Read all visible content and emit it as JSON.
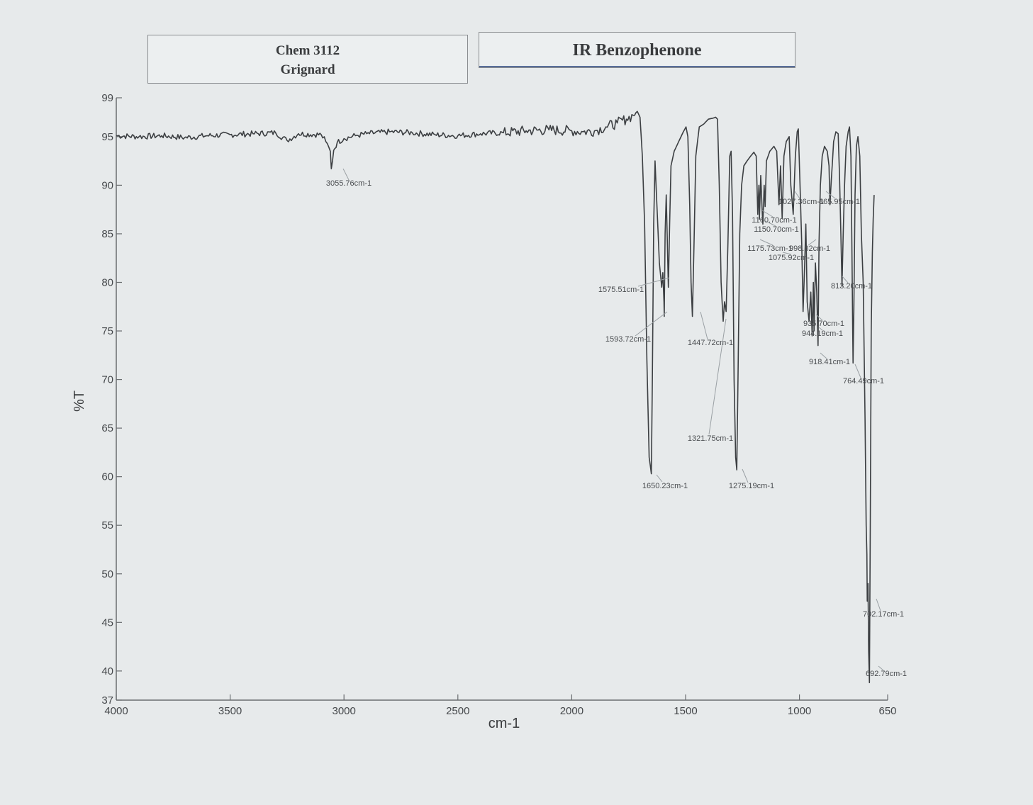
{
  "header": {
    "course": "Chem 3112",
    "experiment": "Grignard",
    "title": "IR Benzophenone"
  },
  "chart_data": {
    "type": "line",
    "title": "IR Benzophenone",
    "xlabel": "cm-1",
    "ylabel": "%T",
    "xlim": [
      4000,
      650
    ],
    "ylim": [
      37,
      99
    ],
    "x_ticks": [
      4000,
      3500,
      3000,
      2500,
      2000,
      1500,
      1000,
      650
    ],
    "y_ticks": [
      37,
      40,
      45,
      50,
      55,
      60,
      65,
      70,
      75,
      80,
      85,
      90,
      95,
      99
    ],
    "grid": false,
    "line_color": "#3c3f42",
    "series": [
      {
        "values": [
          [
            4000,
            95.1
          ],
          [
            3900,
            95.0
          ],
          [
            3800,
            95.1
          ],
          [
            3700,
            94.9
          ],
          [
            3600,
            95.1
          ],
          [
            3500,
            95.2
          ],
          [
            3400,
            95.3
          ],
          [
            3300,
            95.4
          ],
          [
            3250,
            94.6
          ],
          [
            3200,
            95.3
          ],
          [
            3100,
            95.2
          ],
          [
            3080,
            94.5
          ],
          [
            3060,
            93.5
          ],
          [
            3055.76,
            91.7
          ],
          [
            3045,
            93.6
          ],
          [
            3030,
            94.4
          ],
          [
            3000,
            94.8
          ],
          [
            2950,
            95.1
          ],
          [
            2900,
            95.3
          ],
          [
            2800,
            95.5
          ],
          [
            2700,
            95.4
          ],
          [
            2600,
            95.2
          ],
          [
            2500,
            95.1
          ],
          [
            2400,
            95.3
          ],
          [
            2300,
            95.4
          ],
          [
            2200,
            95.6
          ],
          [
            2100,
            95.7
          ],
          [
            2000,
            95.6
          ],
          [
            1950,
            95.5
          ],
          [
            1900,
            95.6
          ],
          [
            1850,
            96.0
          ],
          [
            1800,
            96.4
          ],
          [
            1760,
            96.8
          ],
          [
            1730,
            97.2
          ],
          [
            1712,
            97.6
          ],
          [
            1700,
            97.0
          ],
          [
            1690,
            93.0
          ],
          [
            1680,
            86.0
          ],
          [
            1670,
            72.0
          ],
          [
            1660,
            62.0
          ],
          [
            1650.23,
            60.3
          ],
          [
            1646,
            70.0
          ],
          [
            1640,
            86.0
          ],
          [
            1634,
            92.5
          ],
          [
            1628,
            89.0
          ],
          [
            1615,
            82.0
          ],
          [
            1605,
            79.5
          ],
          [
            1600,
            81.0
          ],
          [
            1595,
            78.0
          ],
          [
            1593.72,
            76.5
          ],
          [
            1590,
            85.0
          ],
          [
            1585,
            89.0
          ],
          [
            1580,
            84.0
          ],
          [
            1575.51,
            79.5
          ],
          [
            1570,
            86.0
          ],
          [
            1564,
            92.0
          ],
          [
            1550,
            93.5
          ],
          [
            1530,
            94.5
          ],
          [
            1510,
            95.5
          ],
          [
            1498,
            96.0
          ],
          [
            1490,
            95.0
          ],
          [
            1482,
            88.0
          ],
          [
            1476,
            80.0
          ],
          [
            1470,
            76.5
          ],
          [
            1463,
            84.0
          ],
          [
            1455,
            93.0
          ],
          [
            1447.72,
            94.5
          ],
          [
            1440,
            96.0
          ],
          [
            1420,
            96.3
          ],
          [
            1400,
            96.8
          ],
          [
            1380,
            96.9
          ],
          [
            1368,
            97.0
          ],
          [
            1360,
            96.8
          ],
          [
            1352,
            90.0
          ],
          [
            1344,
            80.0
          ],
          [
            1335,
            76.0
          ],
          [
            1329,
            78.0
          ],
          [
            1321.75,
            77.0
          ],
          [
            1314,
            84.0
          ],
          [
            1306,
            93.0
          ],
          [
            1300,
            93.5
          ],
          [
            1294,
            87.0
          ],
          [
            1287,
            70.0
          ],
          [
            1280,
            62.0
          ],
          [
            1275.19,
            60.7
          ],
          [
            1270,
            70.0
          ],
          [
            1262,
            85.0
          ],
          [
            1254,
            90.0
          ],
          [
            1244,
            92.0
          ],
          [
            1230,
            92.5
          ],
          [
            1214,
            93.0
          ],
          [
            1200,
            93.4
          ],
          [
            1190,
            93.0
          ],
          [
            1183,
            87.0
          ],
          [
            1178,
            90.0
          ],
          [
            1175.73,
            86.5
          ],
          [
            1170,
            91.0
          ],
          [
            1163,
            87.0
          ],
          [
            1160.7,
            86.0
          ],
          [
            1155,
            90.0
          ],
          [
            1150.7,
            87.8
          ],
          [
            1145,
            92.5
          ],
          [
            1130,
            93.5
          ],
          [
            1112,
            94.0
          ],
          [
            1100,
            93.5
          ],
          [
            1090,
            88.0
          ],
          [
            1083,
            92.0
          ],
          [
            1075.92,
            86.6
          ],
          [
            1068,
            93.0
          ],
          [
            1058,
            94.5
          ],
          [
            1045,
            95.0
          ],
          [
            1038,
            90.0
          ],
          [
            1027.36,
            87.0
          ],
          [
            1018,
            93.0
          ],
          [
            1010,
            95.5
          ],
          [
            1005,
            95.8
          ],
          [
            998.82,
            91.0
          ],
          [
            990,
            84.0
          ],
          [
            984,
            77.0
          ],
          [
            978,
            81.0
          ],
          [
            972,
            86.0
          ],
          [
            966,
            78.0
          ],
          [
            958,
            76.0
          ],
          [
            950,
            79.0
          ],
          [
            944.19,
            74.5
          ],
          [
            939,
            80.0
          ],
          [
            935.7,
            75.0
          ],
          [
            930,
            82.0
          ],
          [
            924,
            79.0
          ],
          [
            918.41,
            73.5
          ],
          [
            914,
            84.0
          ],
          [
            908,
            90.0
          ],
          [
            900,
            93.0
          ],
          [
            890,
            94.0
          ],
          [
            878,
            93.5
          ],
          [
            870,
            92.0
          ],
          [
            865.95,
            88.0
          ],
          [
            860,
            90.5
          ],
          [
            850,
            94.5
          ],
          [
            840,
            95.5
          ],
          [
            830,
            95.3
          ],
          [
            824,
            91.0
          ],
          [
            818,
            85.0
          ],
          [
            813.2,
            79.6
          ],
          [
            808,
            85.0
          ],
          [
            802,
            90.0
          ],
          [
            795,
            94.0
          ],
          [
            786,
            95.5
          ],
          [
            780,
            96.0
          ],
          [
            774,
            93.0
          ],
          [
            770,
            84.0
          ],
          [
            766,
            75.0
          ],
          [
            764.49,
            71.7
          ],
          [
            761,
            77.0
          ],
          [
            756,
            89.0
          ],
          [
            750,
            94.0
          ],
          [
            743,
            95.0
          ],
          [
            735,
            93.0
          ],
          [
            728,
            85.0
          ],
          [
            720,
            80.0
          ],
          [
            712,
            66.0
          ],
          [
            707,
            55.0
          ],
          [
            704,
            52.0
          ],
          [
            702.17,
            47.2
          ],
          [
            699,
            49.0
          ],
          [
            696,
            42.0
          ],
          [
            692.79,
            38.8
          ],
          [
            689,
            55.0
          ],
          [
            685,
            75.0
          ],
          [
            680,
            83.0
          ],
          [
            676,
            86.5
          ],
          [
            672,
            89.0
          ]
        ]
      }
    ],
    "peaks": [
      {
        "label": "3055.76cm-1"
      },
      {
        "label": "1650.23cm-1"
      },
      {
        "label": "1593.72cm-1"
      },
      {
        "label": "1575.51cm-1"
      },
      {
        "label": "1447.72cm-1"
      },
      {
        "label": "1321.75cm-1"
      },
      {
        "label": "1275.19cm-1"
      },
      {
        "label": "1160.70cm-1"
      },
      {
        "label": "1150.70cm-1"
      },
      {
        "label": "1175.73cm-1"
      },
      {
        "label": "998.82cm-1"
      },
      {
        "label": "1075.92cm-1"
      },
      {
        "label": "1027.36cm-1"
      },
      {
        "label": "865.95cm-1"
      },
      {
        "label": "813.20cm-1"
      },
      {
        "label": "935.70cm-1"
      },
      {
        "label": "944.19cm-1"
      },
      {
        "label": "918.41cm-1"
      },
      {
        "label": "764.49cm-1"
      },
      {
        "label": "702.17cm-1"
      },
      {
        "label": "692.79cm-1"
      }
    ]
  }
}
